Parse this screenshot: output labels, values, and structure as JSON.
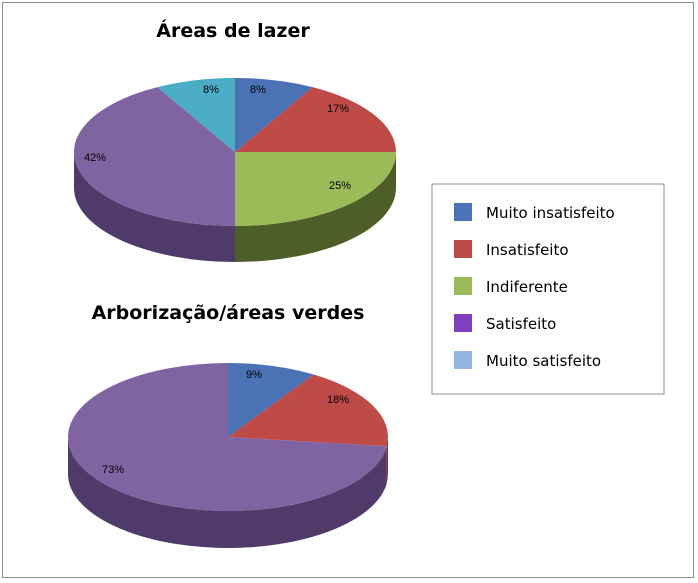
{
  "chart_data": [
    {
      "type": "pie",
      "title": "Áreas de lazer",
      "slices": [
        {
          "name": "Muito insatisfeito",
          "value": 8,
          "label": "8%"
        },
        {
          "name": "Insatisfeito",
          "value": 17,
          "label": "17%"
        },
        {
          "name": "Indiferente",
          "value": 25,
          "label": "25%"
        },
        {
          "name": "Satisfeito",
          "value": 42,
          "label": "42%"
        },
        {
          "name": "Muito satisfeito",
          "value": 8,
          "label": "8%"
        }
      ],
      "style": "3d-exploded-free",
      "legend_position": "right"
    },
    {
      "type": "pie",
      "title": "Arborização/áreas verdes",
      "slices": [
        {
          "name": "Muito insatisfeito",
          "value": 9,
          "label": "9%"
        },
        {
          "name": "Insatisfeito",
          "value": 18,
          "label": "18%"
        },
        {
          "name": "Satisfeito",
          "value": 73,
          "label": "73%"
        }
      ],
      "style": "3d",
      "legend_position": "right"
    }
  ],
  "legend": {
    "items": [
      {
        "label": "Muito insatisfeito",
        "color": "#4a72b4"
      },
      {
        "label": "Insatisfeito",
        "color": "#be4b48"
      },
      {
        "label": "Indiferente",
        "color": "#9bbb59"
      },
      {
        "label": "Satisfeito",
        "color": "#8064a2"
      },
      {
        "label": "Muito satisfeito",
        "color": "#95b3e0"
      }
    ]
  },
  "colors": {
    "Muito insatisfeito": "#4a72b4",
    "Insatisfeito": "#be4b48",
    "Indiferente": "#9bbb59",
    "Satisfeito": "#8064a2",
    "Muito satisfeito": "#4bacc6"
  },
  "legend_swatch_colors": {
    "Muito insatisfeito": "#4a72b4",
    "Insatisfeito": "#be4b48",
    "Indiferente": "#9bbb59",
    "Satisfeito": "#7f3fbf",
    "Muito satisfeito": "#95b3e0"
  }
}
